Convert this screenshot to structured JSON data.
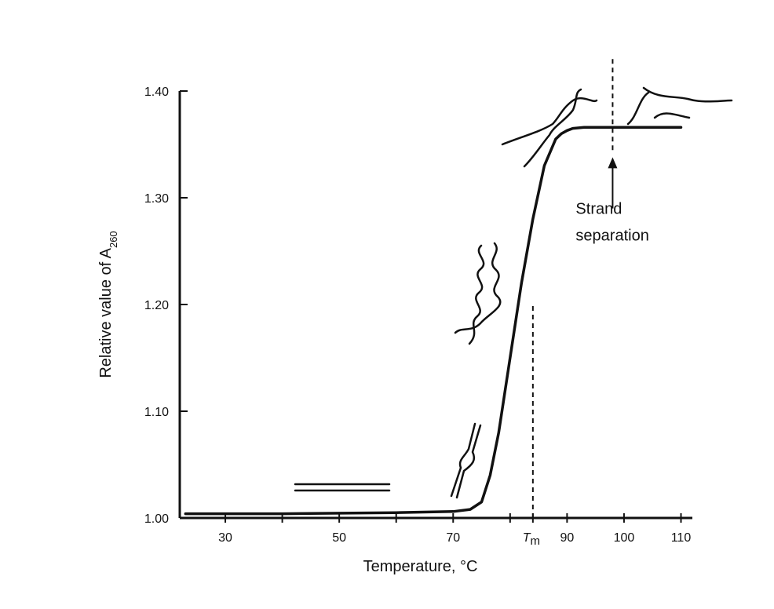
{
  "chart_data": {
    "type": "line",
    "title": "",
    "xlabel": "Temperature, °C",
    "ylabel": "Relative value of A",
    "ylabel_subscript": "260",
    "xlim": [
      22,
      112
    ],
    "ylim": [
      1.0,
      1.4
    ],
    "x_ticks": [
      {
        "value": 30,
        "label": "30"
      },
      {
        "value": 50,
        "label": "50"
      },
      {
        "value": 70,
        "label": "70"
      },
      {
        "value": 90,
        "label": "90"
      },
      {
        "value": 100,
        "label": "100"
      },
      {
        "value": 110,
        "label": "110"
      }
    ],
    "x_minor_ticks": [
      40,
      60,
      80
    ],
    "tm_tick": {
      "value": 84,
      "label": "T",
      "subscript": "m"
    },
    "y_ticks": [
      {
        "value": 1.0,
        "label": "1.00"
      },
      {
        "value": 1.1,
        "label": "1.10"
      },
      {
        "value": 1.2,
        "label": "1.20"
      },
      {
        "value": 1.3,
        "label": "1.30"
      },
      {
        "value": 1.4,
        "label": "1.40"
      }
    ],
    "series": [
      {
        "x": [
          23,
          40,
          60,
          70,
          73,
          75,
          76.5,
          78,
          80,
          82,
          84,
          86,
          88,
          89,
          90,
          91,
          93,
          100,
          110
        ],
        "y": [
          1.004,
          1.004,
          1.005,
          1.006,
          1.008,
          1.015,
          1.04,
          1.08,
          1.15,
          1.22,
          1.28,
          1.33,
          1.355,
          1.36,
          1.363,
          1.365,
          1.366,
          1.366,
          1.366
        ]
      }
    ],
    "tm_line": {
      "x": 84,
      "y_top": 1.2
    },
    "separation_line": {
      "x": 98,
      "y_top": 1.43
    },
    "annotations": [
      {
        "text": "Strand",
        "x": 98,
        "y": 1.285
      },
      {
        "text": "separation",
        "x": 98,
        "y": 1.26
      }
    ],
    "arrow": {
      "x": 98,
      "y_from": 1.29,
      "y_to": 1.335
    },
    "grid": false
  }
}
